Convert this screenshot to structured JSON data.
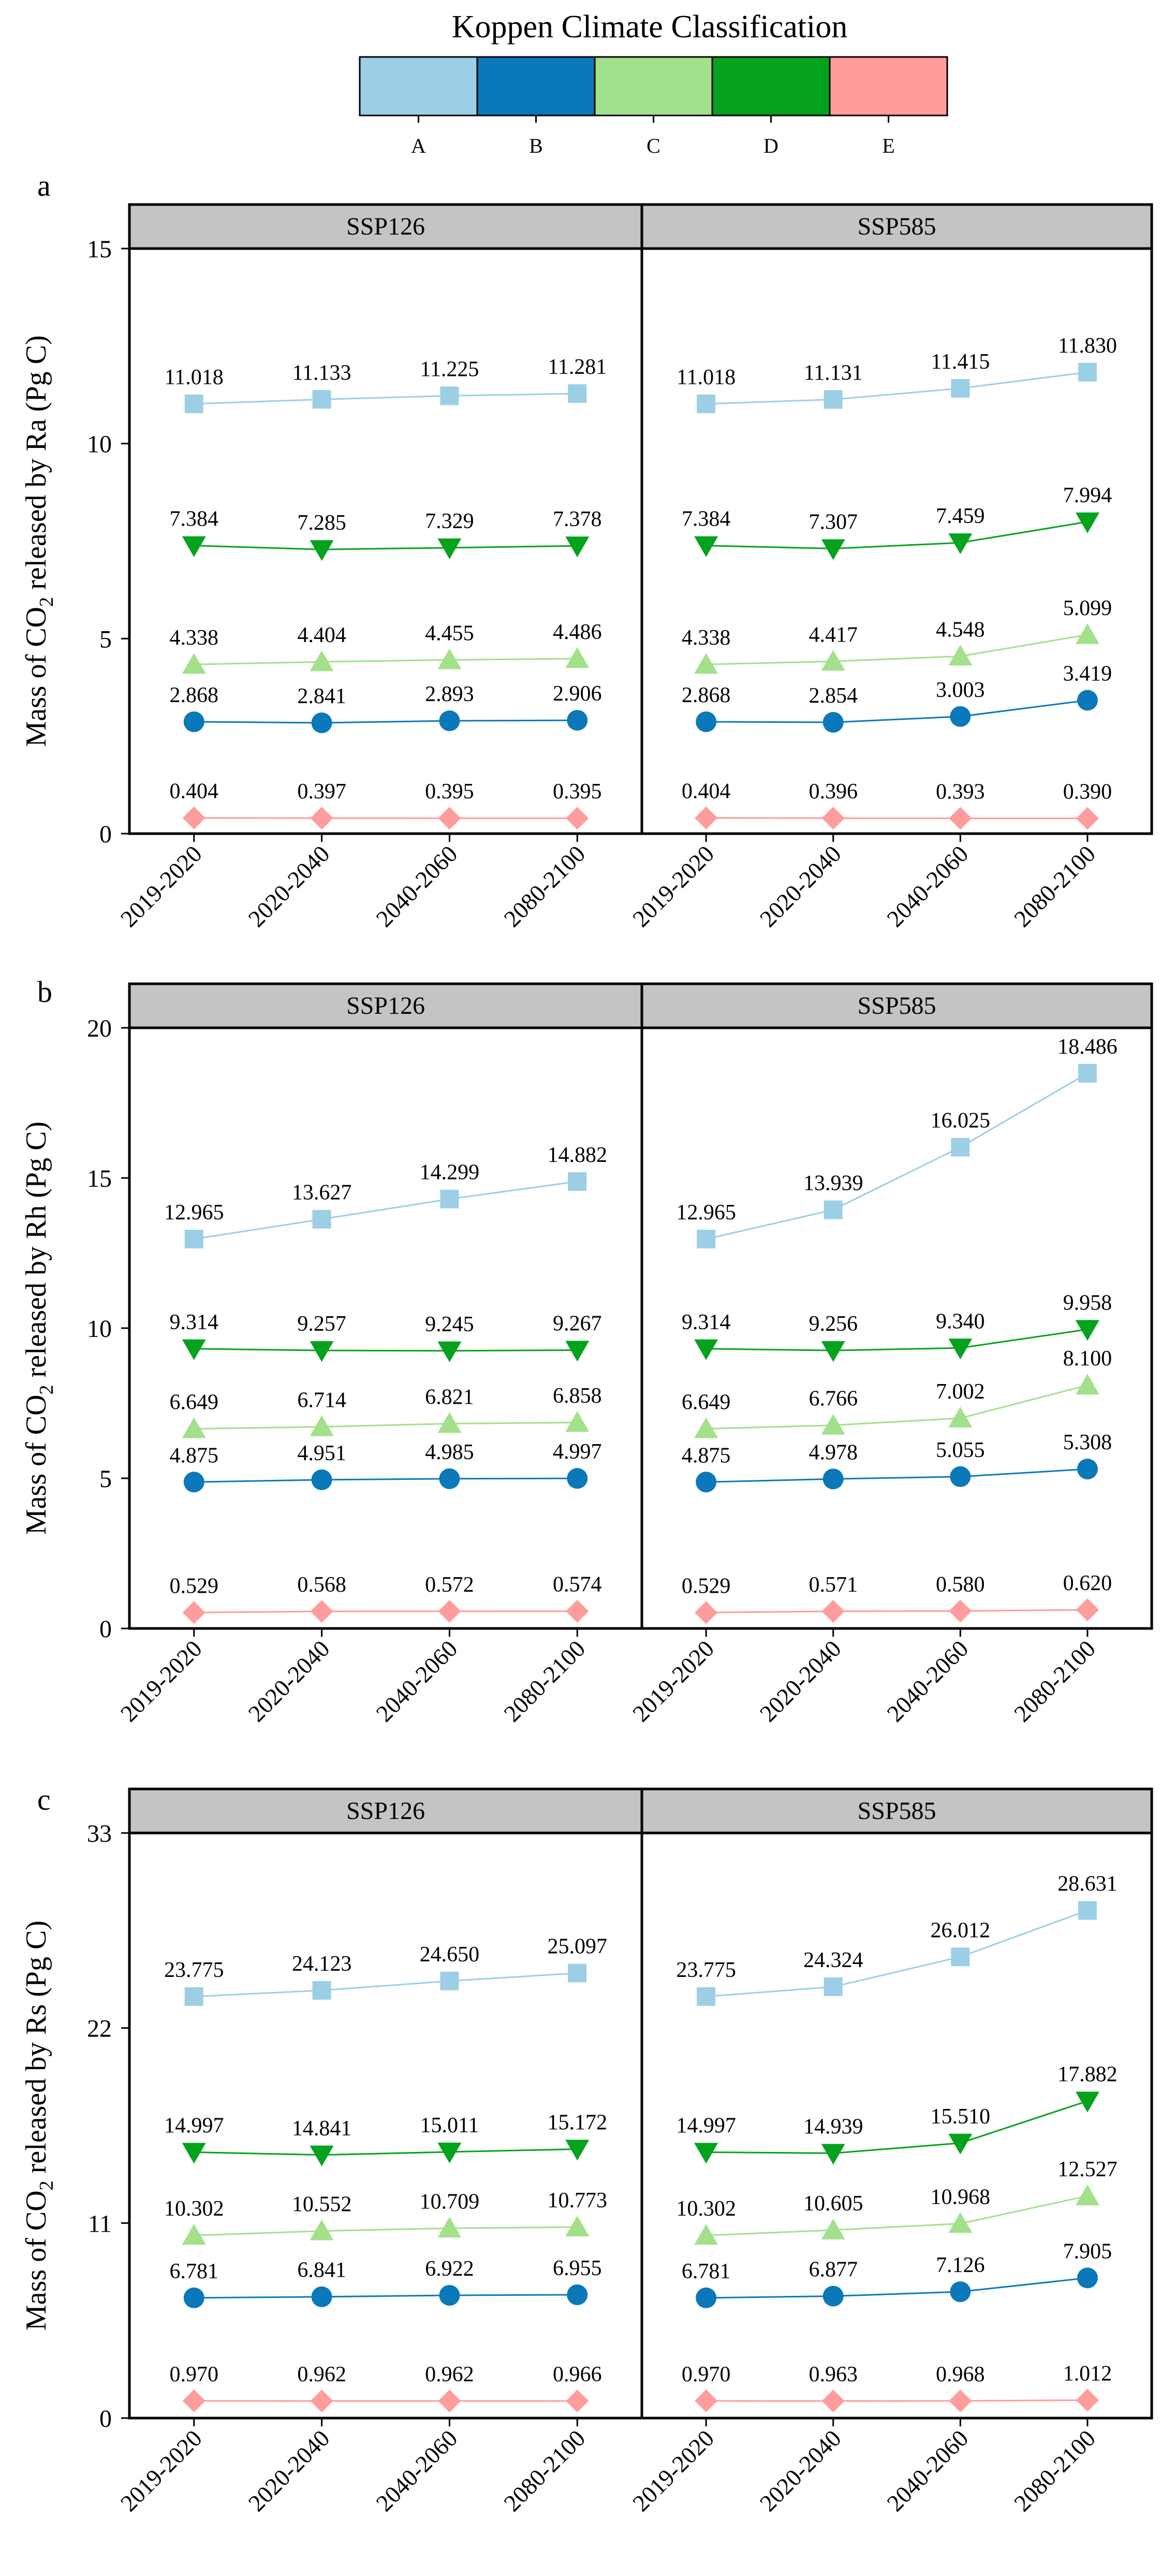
{
  "legend": {
    "title": "Koppen Climate Classification",
    "items": [
      {
        "label": "A",
        "color": "#9ccfe6"
      },
      {
        "label": "B",
        "color": "#0b78ba"
      },
      {
        "label": "C",
        "color": "#a3e08b"
      },
      {
        "label": "D",
        "color": "#04a21d"
      },
      {
        "label": "E",
        "color": "#ff9c9c"
      }
    ]
  },
  "chart_data": [
    {
      "type": "line",
      "panel_letter": "a",
      "ylabel": "Mass of CO2 released by Ra (Pg C)",
      "ylabel_main": "Mass of CO",
      "ylabel_sub": "2",
      "ylabel_rest": " released by Ra (Pg C)",
      "ylim": [
        0,
        15
      ],
      "yticks": [
        0,
        5,
        10,
        15
      ],
      "categories": [
        "2019-2020",
        "2020-2040",
        "2040-2060",
        "2080-2100"
      ],
      "facets": [
        {
          "title": "SSP126",
          "series": [
            {
              "name": "A",
              "marker": "square",
              "values": [
                11.018,
                11.133,
                11.225,
                11.281
              ],
              "labels": [
                "11.018",
                "11.133",
                "11.225",
                "11.281"
              ]
            },
            {
              "name": "B",
              "marker": "circle",
              "values": [
                2.868,
                2.841,
                2.893,
                2.906
              ],
              "labels": [
                "2.868",
                "2.841",
                "2.893",
                "2.906"
              ]
            },
            {
              "name": "C",
              "marker": "triangle-up",
              "values": [
                4.338,
                4.404,
                4.455,
                4.486
              ],
              "labels": [
                "4.338",
                "4.404",
                "4.455",
                "4.486"
              ]
            },
            {
              "name": "D",
              "marker": "triangle-down",
              "values": [
                7.384,
                7.285,
                7.329,
                7.378
              ],
              "labels": [
                "7.384",
                "7.285",
                "7.329",
                "7.378"
              ]
            },
            {
              "name": "E",
              "marker": "diamond",
              "values": [
                0.404,
                0.397,
                0.395,
                0.395
              ],
              "labels": [
                "0.404",
                "0.397",
                "0.395",
                "0.395"
              ]
            }
          ]
        },
        {
          "title": "SSP585",
          "series": [
            {
              "name": "A",
              "marker": "square",
              "values": [
                11.018,
                11.131,
                11.415,
                11.83
              ],
              "labels": [
                "11.018",
                "11.131",
                "11.415",
                "11.830"
              ]
            },
            {
              "name": "B",
              "marker": "circle",
              "values": [
                2.868,
                2.854,
                3.003,
                3.419
              ],
              "labels": [
                "2.868",
                "2.854",
                "3.003",
                "3.419"
              ]
            },
            {
              "name": "C",
              "marker": "triangle-up",
              "values": [
                4.338,
                4.417,
                4.548,
                5.099
              ],
              "labels": [
                "4.338",
                "4.417",
                "4.548",
                "5.099"
              ]
            },
            {
              "name": "D",
              "marker": "triangle-down",
              "values": [
                7.384,
                7.307,
                7.459,
                7.994
              ],
              "labels": [
                "7.384",
                "7.307",
                "7.459",
                "7.994"
              ]
            },
            {
              "name": "E",
              "marker": "diamond",
              "values": [
                0.404,
                0.396,
                0.393,
                0.39
              ],
              "labels": [
                "0.404",
                "0.396",
                "0.393",
                "0.390"
              ]
            }
          ]
        }
      ]
    },
    {
      "type": "line",
      "panel_letter": "b",
      "ylabel": "Mass of CO2 released by Rh (Pg C)",
      "ylabel_main": "Mass of CO",
      "ylabel_sub": "2",
      "ylabel_rest": " released by Rh (Pg C)",
      "ylim": [
        0,
        20
      ],
      "yticks": [
        0,
        5,
        10,
        15,
        20
      ],
      "categories": [
        "2019-2020",
        "2020-2040",
        "2040-2060",
        "2080-2100"
      ],
      "facets": [
        {
          "title": "SSP126",
          "series": [
            {
              "name": "A",
              "marker": "square",
              "values": [
                12.965,
                13.627,
                14.299,
                14.882
              ],
              "labels": [
                "12.965",
                "13.627",
                "14.299",
                "14.882"
              ]
            },
            {
              "name": "B",
              "marker": "circle",
              "values": [
                4.875,
                4.951,
                4.985,
                4.997
              ],
              "labels": [
                "4.875",
                "4.951",
                "4.985",
                "4.997"
              ]
            },
            {
              "name": "C",
              "marker": "triangle-up",
              "values": [
                6.649,
                6.714,
                6.821,
                6.858
              ],
              "labels": [
                "6.649",
                "6.714",
                "6.821",
                "6.858"
              ]
            },
            {
              "name": "D",
              "marker": "triangle-down",
              "values": [
                9.314,
                9.257,
                9.245,
                9.267
              ],
              "labels": [
                "9.314",
                "9.257",
                "9.245",
                "9.267"
              ]
            },
            {
              "name": "E",
              "marker": "diamond",
              "values": [
                0.529,
                0.568,
                0.572,
                0.574
              ],
              "labels": [
                "0.529",
                "0.568",
                "0.572",
                "0.574"
              ]
            }
          ]
        },
        {
          "title": "SSP585",
          "series": [
            {
              "name": "A",
              "marker": "square",
              "values": [
                12.965,
                13.939,
                16.025,
                18.486
              ],
              "labels": [
                "12.965",
                "13.939",
                "16.025",
                "18.486"
              ]
            },
            {
              "name": "B",
              "marker": "circle",
              "values": [
                4.875,
                4.978,
                5.055,
                5.308
              ],
              "labels": [
                "4.875",
                "4.978",
                "5.055",
                "5.308"
              ]
            },
            {
              "name": "C",
              "marker": "triangle-up",
              "values": [
                6.649,
                6.766,
                7.002,
                8.1
              ],
              "labels": [
                "6.649",
                "6.766",
                "7.002",
                "8.100"
              ]
            },
            {
              "name": "D",
              "marker": "triangle-down",
              "values": [
                9.314,
                9.256,
                9.34,
                9.958
              ],
              "labels": [
                "9.314",
                "9.256",
                "9.340",
                "9.958"
              ]
            },
            {
              "name": "E",
              "marker": "diamond",
              "values": [
                0.529,
                0.571,
                0.58,
                0.62
              ],
              "labels": [
                "0.529",
                "0.571",
                "0.580",
                "0.620"
              ]
            }
          ]
        }
      ]
    },
    {
      "type": "line",
      "panel_letter": "c",
      "ylabel": "Mass of CO2 released by Rs (Pg C)",
      "ylabel_main": "Mass of CO",
      "ylabel_sub": "2",
      "ylabel_rest": " released by Rs (Pg C)",
      "ylim": [
        0,
        33
      ],
      "yticks": [
        0,
        11,
        22,
        33
      ],
      "categories": [
        "2019-2020",
        "2020-2040",
        "2040-2060",
        "2080-2100"
      ],
      "facets": [
        {
          "title": "SSP126",
          "series": [
            {
              "name": "A",
              "marker": "square",
              "values": [
                23.775,
                24.123,
                24.65,
                25.097
              ],
              "labels": [
                "23.775",
                "24.123",
                "24.650",
                "25.097"
              ]
            },
            {
              "name": "B",
              "marker": "circle",
              "values": [
                6.781,
                6.841,
                6.922,
                6.955
              ],
              "labels": [
                "6.781",
                "6.841",
                "6.922",
                "6.955"
              ]
            },
            {
              "name": "C",
              "marker": "triangle-up",
              "values": [
                10.302,
                10.552,
                10.709,
                10.773
              ],
              "labels": [
                "10.302",
                "10.552",
                "10.709",
                "10.773"
              ]
            },
            {
              "name": "D",
              "marker": "triangle-down",
              "values": [
                14.997,
                14.841,
                15.011,
                15.172
              ],
              "labels": [
                "14.997",
                "14.841",
                "15.011",
                "15.172"
              ]
            },
            {
              "name": "E",
              "marker": "diamond",
              "values": [
                0.97,
                0.962,
                0.962,
                0.966
              ],
              "labels": [
                "0.970",
                "0.962",
                "0.962",
                "0.966"
              ]
            }
          ]
        },
        {
          "title": "SSP585",
          "series": [
            {
              "name": "A",
              "marker": "square",
              "values": [
                23.775,
                24.324,
                26.012,
                28.631
              ],
              "labels": [
                "23.775",
                "24.324",
                "26.012",
                "28.631"
              ]
            },
            {
              "name": "B",
              "marker": "circle",
              "values": [
                6.781,
                6.877,
                7.126,
                7.905
              ],
              "labels": [
                "6.781",
                "6.877",
                "7.126",
                "7.905"
              ]
            },
            {
              "name": "C",
              "marker": "triangle-up",
              "values": [
                10.302,
                10.605,
                10.968,
                12.527
              ],
              "labels": [
                "10.302",
                "10.605",
                "10.968",
                "12.527"
              ]
            },
            {
              "name": "D",
              "marker": "triangle-down",
              "values": [
                14.997,
                14.939,
                15.51,
                17.882
              ],
              "labels": [
                "14.997",
                "14.939",
                "15.510",
                "17.882"
              ]
            },
            {
              "name": "E",
              "marker": "diamond",
              "values": [
                0.97,
                0.963,
                0.968,
                1.012
              ],
              "labels": [
                "0.970",
                "0.963",
                "0.968",
                "1.012"
              ]
            }
          ]
        }
      ]
    }
  ]
}
